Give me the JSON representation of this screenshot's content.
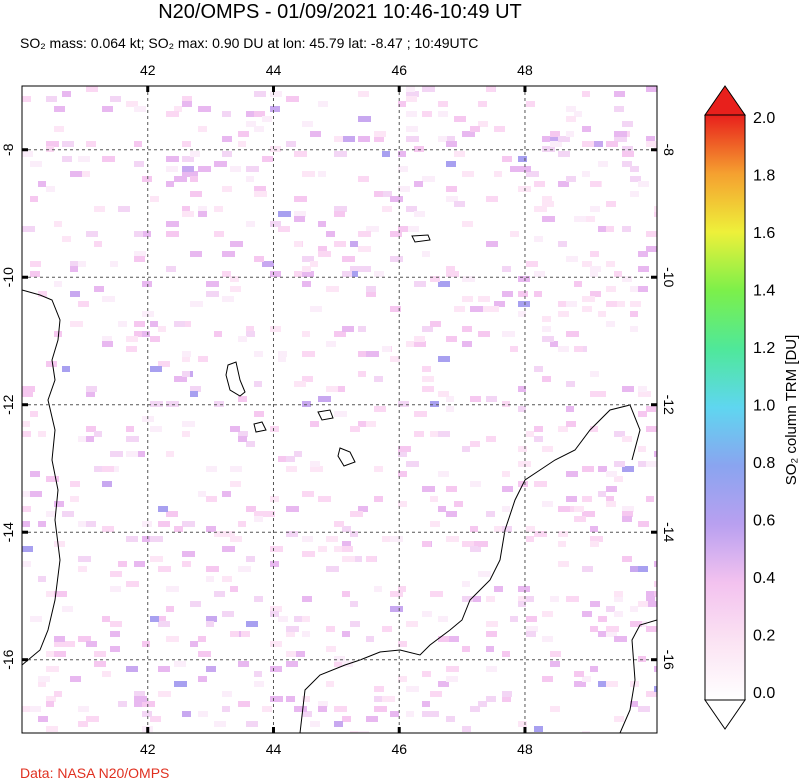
{
  "title": "N20/OMPS - 01/09/2021 10:46-10:49 UT",
  "subtitle": "SO₂ mass: 0.064 kt; SO₂ max: 0.90 DU at lon: 45.79 lat: -8.47 ; 10:49UTC",
  "map": {
    "lonlim": [
      40,
      50.1
    ],
    "latlim": [
      -17.15,
      -7
    ],
    "lon_ticks": [
      42,
      44,
      46,
      48
    ],
    "lat_ticks": [
      -8,
      -10,
      -12,
      -14,
      -16
    ]
  },
  "colorbar": {
    "label": "SO₂ column TRM [DU]",
    "range": [
      0,
      2
    ],
    "ticks": [
      {
        "value": 0,
        "label": "0.0"
      },
      {
        "value": 0.2,
        "label": "0.2"
      },
      {
        "value": 0.4,
        "label": "0.4"
      },
      {
        "value": 0.6,
        "label": "0.6"
      },
      {
        "value": 0.8,
        "label": "0.8"
      },
      {
        "value": 1,
        "label": "1.0"
      },
      {
        "value": 1.2,
        "label": "1.2"
      },
      {
        "value": 1.4,
        "label": "1.4"
      },
      {
        "value": 1.6,
        "label": "1.6"
      },
      {
        "value": 1.8,
        "label": "1.8"
      },
      {
        "value": 2,
        "label": "2.0"
      }
    ]
  },
  "credit": "Data: NASA N20/OMPS"
}
